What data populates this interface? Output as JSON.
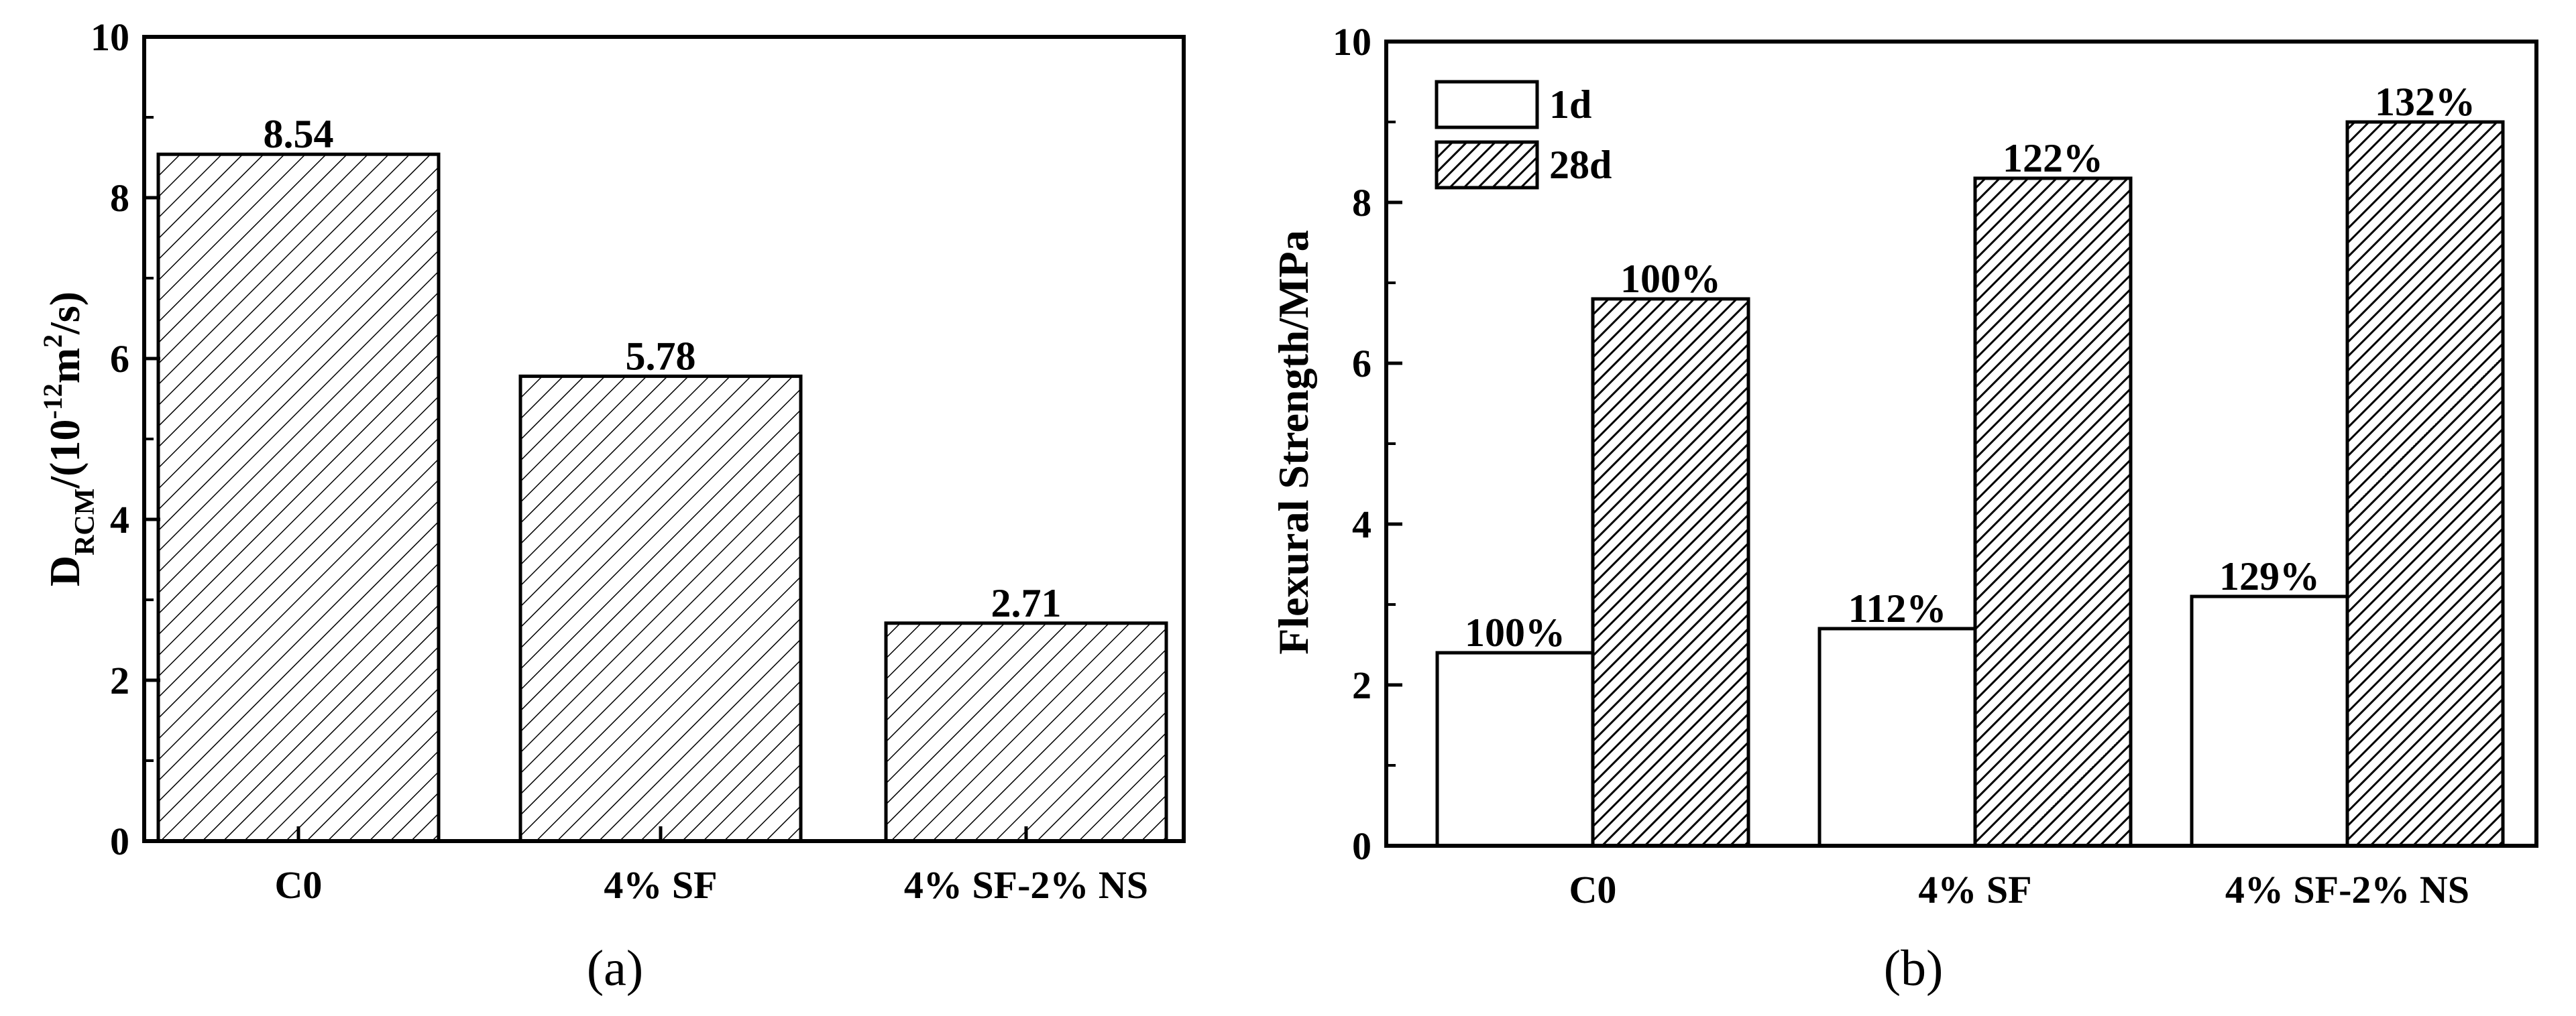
{
  "chart_data": [
    {
      "type": "bar",
      "categories": [
        "C0",
        "4% SF",
        "4% SF-2% NS"
      ],
      "values": [
        8.54,
        5.78,
        2.71
      ],
      "data_labels": [
        "8.54",
        "5.78",
        "2.71"
      ],
      "ylabel": {
        "main": "D",
        "main_sub": "RCM",
        "unit_pre": "/(10",
        "unit_exp": "-12",
        "unit_mid": "m",
        "unit_exp2": "2",
        "unit_post": "/s)"
      },
      "ylim": [
        0,
        10
      ],
      "yticks": [
        "0",
        "2",
        "4",
        "6",
        "8",
        "10"
      ],
      "pattern": "thin diagonal hatch",
      "caption": "(a)"
    },
    {
      "type": "bar",
      "categories": [
        "C0",
        "4% SF",
        "4% SF-2% NS"
      ],
      "series": [
        {
          "name": "1d",
          "values": [
            2.4,
            2.7,
            3.1
          ],
          "labels": [
            "100%",
            "112%",
            "129%"
          ],
          "pattern": "plain"
        },
        {
          "name": "28d",
          "values": [
            6.8,
            8.3,
            9.0
          ],
          "labels": [
            "100%",
            "122%",
            "132%"
          ],
          "pattern": "dense diagonal hatch"
        }
      ],
      "ylabel": "Flexural Strength/MPa",
      "ylim": [
        0,
        10
      ],
      "yticks": [
        "0",
        "2",
        "4",
        "6",
        "8",
        "10"
      ],
      "legend": "top-left",
      "caption": "(b)"
    }
  ],
  "colors": {
    "ink": "#000000",
    "background": "#ffffff"
  }
}
